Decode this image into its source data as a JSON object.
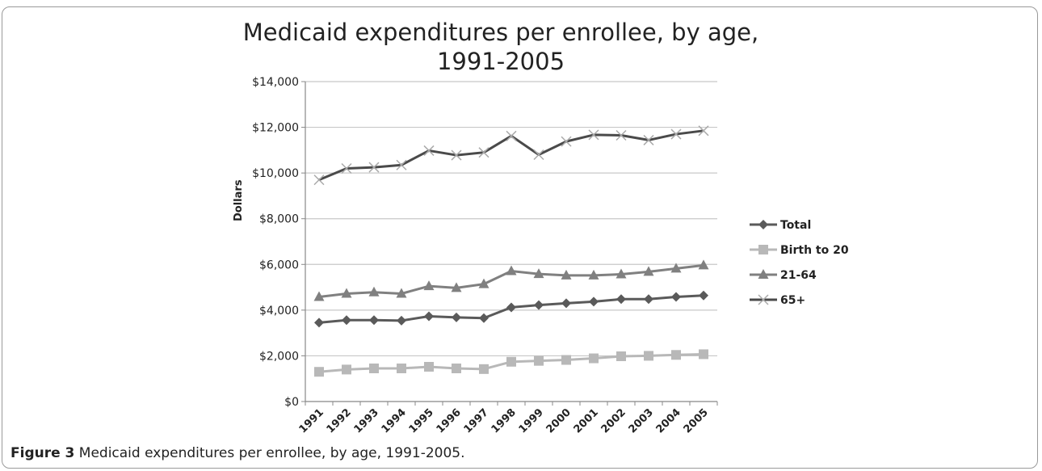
{
  "figure": {
    "caption_label": "Figure 3",
    "caption_text": " Medicaid expenditures per enrollee, by age, 1991-2005."
  },
  "chart_data": {
    "type": "line",
    "title_line1": "Medicaid expenditures per enrollee, by age,",
    "title_line2": "1991-2005",
    "xlabel": "",
    "ylabel": "Dollars",
    "ylim": [
      0,
      14000
    ],
    "yticks": [
      "$0",
      "$2,000",
      "$4,000",
      "$6,000",
      "$8,000",
      "$10,000",
      "$12,000",
      "$14,000"
    ],
    "categories": [
      "1991",
      "1992",
      "1993",
      "1994",
      "1995",
      "1996",
      "1997",
      "1998",
      "1999",
      "2000",
      "2001",
      "2002",
      "2003",
      "2004",
      "2005"
    ],
    "grid": true,
    "legend_position": "right",
    "series": [
      {
        "name": "Total",
        "marker": "diamond",
        "color": "#5a5a5a",
        "values": [
          3450,
          3560,
          3560,
          3540,
          3730,
          3680,
          3650,
          4120,
          4220,
          4300,
          4370,
          4480,
          4480,
          4580,
          4640
        ]
      },
      {
        "name": "Birth to 20",
        "marker": "square",
        "color": "#b8b8b8",
        "values": [
          1300,
          1400,
          1450,
          1450,
          1520,
          1450,
          1420,
          1740,
          1780,
          1820,
          1890,
          1980,
          2000,
          2040,
          2070
        ]
      },
      {
        "name": "21-64",
        "marker": "triangle",
        "color": "#808080",
        "values": [
          4580,
          4720,
          4780,
          4720,
          5050,
          4970,
          5140,
          5710,
          5580,
          5520,
          5520,
          5570,
          5680,
          5820,
          5960
        ]
      },
      {
        "name": "65+",
        "marker": "x",
        "color": "#4a4a4a",
        "values": [
          9700,
          10200,
          10250,
          10350,
          10980,
          10780,
          10900,
          11620,
          10800,
          11380,
          11670,
          11650,
          11440,
          11700,
          11850
        ]
      }
    ]
  }
}
